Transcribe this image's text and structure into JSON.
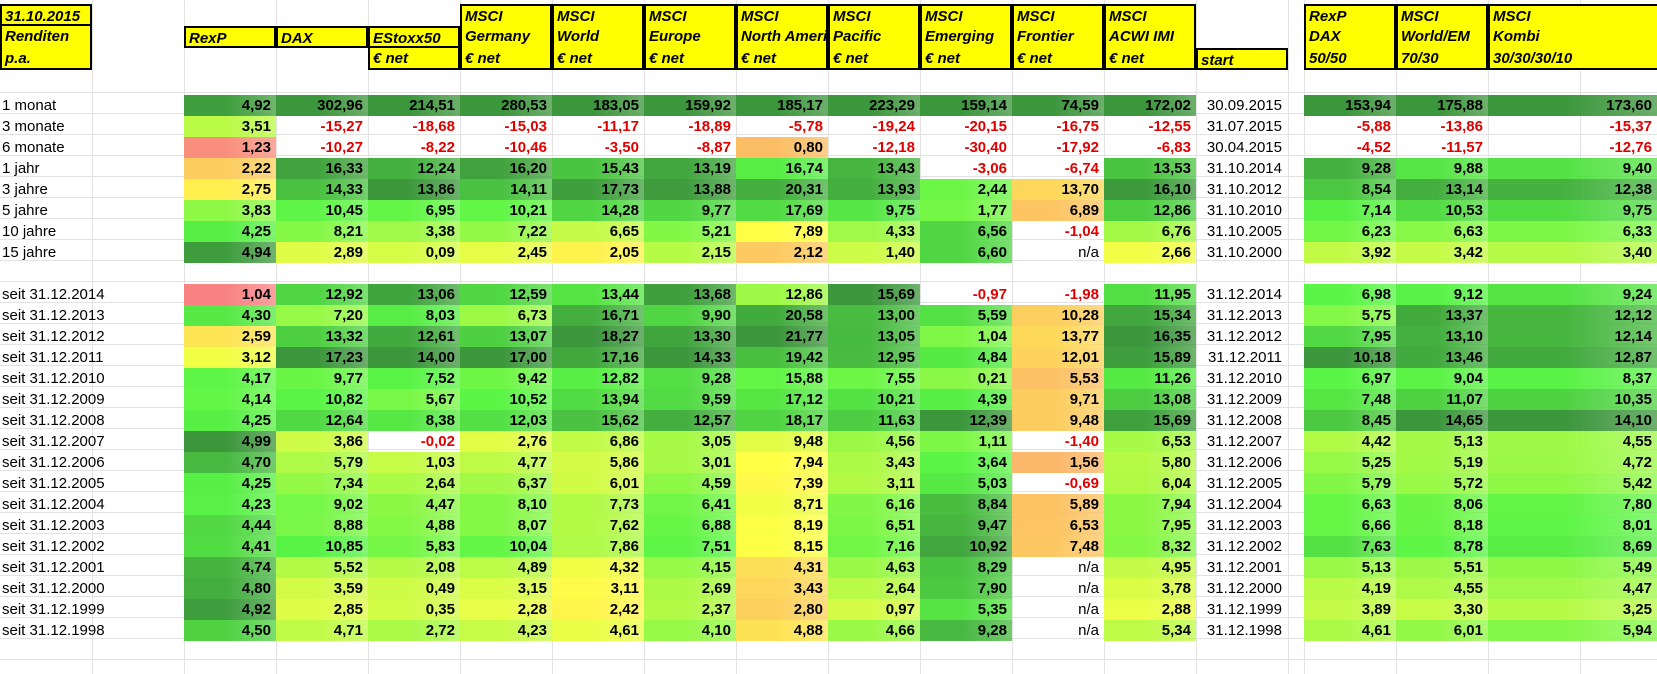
{
  "header": {
    "date": "31.10.2015",
    "renditen": "Renditen",
    "pa": "p.a.",
    "start_label": "start",
    "columns": [
      {
        "l1": "RexP",
        "l2": "",
        "l3": ""
      },
      {
        "l1": "DAX",
        "l2": "",
        "l3": ""
      },
      {
        "l1": "EStoxx50",
        "l2": "€ net",
        "l3": ""
      },
      {
        "l1": "MSCI",
        "l2": "Germany",
        "l3": "€ net"
      },
      {
        "l1": "MSCI",
        "l2": "World",
        "l3": "€ net"
      },
      {
        "l1": "MSCI",
        "l2": "Europe",
        "l3": "€ net"
      },
      {
        "l1": "MSCI",
        "l2": "North America",
        "l3": "€ net"
      },
      {
        "l1": "MSCI",
        "l2": "Pacific",
        "l3": "€ net"
      },
      {
        "l1": "MSCI",
        "l2": "Emerging",
        "l3": "€ net"
      },
      {
        "l1": "MSCI",
        "l2": "Frontier",
        "l3": "€ net"
      },
      {
        "l1": "MSCI",
        "l2": "ACWI IMI",
        "l3": "€ net"
      }
    ],
    "combos": [
      {
        "l1": "RexP",
        "l2": "DAX",
        "l3": "50/50"
      },
      {
        "l1": "MSCI",
        "l2": "World/EM",
        "l3": "70/30"
      },
      {
        "l1": "MSCI",
        "l2": "Kombi",
        "l3": "30/30/30/10"
      }
    ]
  },
  "rows": [
    {
      "label": "1 monat",
      "v": [
        "4,92",
        "302,96",
        "214,51",
        "280,53",
        "183,05",
        "159,92",
        "185,17",
        "223,29",
        "159,14",
        "74,59",
        "172,02"
      ],
      "start": "30.09.2015",
      "c": [
        "153,94",
        "175,88",
        "173,60"
      ]
    },
    {
      "label": "3 monate",
      "v": [
        "3,51",
        "-15,27",
        "-18,68",
        "-15,03",
        "-11,17",
        "-18,89",
        "-5,78",
        "-19,24",
        "-20,15",
        "-16,75",
        "-12,55"
      ],
      "start": "31.07.2015",
      "c": [
        "-5,88",
        "-13,86",
        "-15,37"
      ]
    },
    {
      "label": "6 monate",
      "v": [
        "1,23",
        "-10,27",
        "-8,22",
        "-10,46",
        "-3,50",
        "-8,87",
        "0,80",
        "-12,18",
        "-30,40",
        "-17,92",
        "-6,83"
      ],
      "start": "30.04.2015",
      "c": [
        "-4,52",
        "-11,57",
        "-12,76"
      ]
    },
    {
      "label": "1 jahr",
      "v": [
        "2,22",
        "16,33",
        "12,24",
        "16,20",
        "15,43",
        "13,19",
        "16,74",
        "13,43",
        "-3,06",
        "-6,74",
        "13,53"
      ],
      "start": "31.10.2014",
      "c": [
        "9,28",
        "9,88",
        "9,40"
      ]
    },
    {
      "label": "3 jahre",
      "v": [
        "2,75",
        "14,33",
        "13,86",
        "14,11",
        "17,73",
        "13,88",
        "20,31",
        "13,93",
        "2,44",
        "13,70",
        "16,10"
      ],
      "start": "31.10.2012",
      "c": [
        "8,54",
        "13,14",
        "12,38"
      ]
    },
    {
      "label": "5 jahre",
      "v": [
        "3,83",
        "10,45",
        "6,95",
        "10,21",
        "14,28",
        "9,77",
        "17,69",
        "9,75",
        "1,77",
        "6,89",
        "12,86"
      ],
      "start": "31.10.2010",
      "c": [
        "7,14",
        "10,53",
        "9,75"
      ]
    },
    {
      "label": "10 jahre",
      "v": [
        "4,25",
        "8,21",
        "3,38",
        "7,22",
        "6,65",
        "5,21",
        "7,89",
        "4,33",
        "6,56",
        "-1,04",
        "6,76"
      ],
      "start": "31.10.2005",
      "c": [
        "6,23",
        "6,63",
        "6,33"
      ]
    },
    {
      "label": "15 jahre",
      "v": [
        "4,94",
        "2,89",
        "0,09",
        "2,45",
        "2,05",
        "2,15",
        "2,12",
        "1,40",
        "6,60",
        "n/a",
        "2,66"
      ],
      "start": "31.10.2000",
      "c": [
        "3,92",
        "3,42",
        "3,40"
      ]
    },
    {
      "label": "",
      "v": [],
      "start": "",
      "c": []
    },
    {
      "label": "seit 31.12.2014",
      "v": [
        "1,04",
        "12,92",
        "13,06",
        "12,59",
        "13,44",
        "13,68",
        "12,86",
        "15,69",
        "-0,97",
        "-1,98",
        "11,95"
      ],
      "start": "31.12.2014",
      "c": [
        "6,98",
        "9,12",
        "9,24"
      ]
    },
    {
      "label": "seit 31.12.2013",
      "v": [
        "4,30",
        "7,20",
        "8,03",
        "6,73",
        "16,71",
        "9,90",
        "20,58",
        "13,00",
        "5,59",
        "10,28",
        "15,34"
      ],
      "start": "31.12.2013",
      "c": [
        "5,75",
        "13,37",
        "12,12"
      ]
    },
    {
      "label": "seit 31.12.2012",
      "v": [
        "2,59",
        "13,32",
        "12,61",
        "13,07",
        "18,27",
        "13,30",
        "21,77",
        "13,05",
        "1,04",
        "13,77",
        "16,35"
      ],
      "start": "31.12.2012",
      "c": [
        "7,95",
        "13,10",
        "12,14"
      ]
    },
    {
      "label": "seit 31.12.2011",
      "v": [
        "3,12",
        "17,23",
        "14,00",
        "17,00",
        "17,16",
        "14,33",
        "19,42",
        "12,95",
        "4,84",
        "12,01",
        "15,89"
      ],
      "start": "31.12.2011",
      "c": [
        "10,18",
        "13,46",
        "12,87"
      ]
    },
    {
      "label": "seit 31.12.2010",
      "v": [
        "4,17",
        "9,77",
        "7,52",
        "9,42",
        "12,82",
        "9,28",
        "15,88",
        "7,55",
        "0,21",
        "5,53",
        "11,26"
      ],
      "start": "31.12.2010",
      "c": [
        "6,97",
        "9,04",
        "8,37"
      ]
    },
    {
      "label": "seit 31.12.2009",
      "v": [
        "4,14",
        "10,82",
        "5,67",
        "10,52",
        "13,94",
        "9,59",
        "17,12",
        "10,21",
        "4,39",
        "9,71",
        "13,08"
      ],
      "start": "31.12.2009",
      "c": [
        "7,48",
        "11,07",
        "10,35"
      ]
    },
    {
      "label": "seit 31.12.2008",
      "v": [
        "4,25",
        "12,64",
        "8,38",
        "12,03",
        "15,62",
        "12,57",
        "18,17",
        "11,63",
        "12,39",
        "9,48",
        "15,69"
      ],
      "start": "31.12.2008",
      "c": [
        "8,45",
        "14,65",
        "14,10"
      ]
    },
    {
      "label": "seit 31.12.2007",
      "v": [
        "4,99",
        "3,86",
        "-0,02",
        "2,76",
        "6,86",
        "3,05",
        "9,48",
        "4,56",
        "1,11",
        "-1,40",
        "6,53"
      ],
      "start": "31.12.2007",
      "c": [
        "4,42",
        "5,13",
        "4,55"
      ]
    },
    {
      "label": "seit 31.12.2006",
      "v": [
        "4,70",
        "5,79",
        "1,03",
        "4,77",
        "5,86",
        "3,01",
        "7,94",
        "3,43",
        "3,64",
        "1,56",
        "5,80"
      ],
      "start": "31.12.2006",
      "c": [
        "5,25",
        "5,19",
        "4,72"
      ]
    },
    {
      "label": "seit 31.12.2005",
      "v": [
        "4,25",
        "7,34",
        "2,64",
        "6,37",
        "6,01",
        "4,59",
        "7,39",
        "3,11",
        "5,03",
        "-0,69",
        "6,04"
      ],
      "start": "31.12.2005",
      "c": [
        "5,79",
        "5,72",
        "5,42"
      ]
    },
    {
      "label": "seit 31.12.2004",
      "v": [
        "4,23",
        "9,02",
        "4,47",
        "8,10",
        "7,73",
        "6,41",
        "8,71",
        "6,16",
        "8,84",
        "5,89",
        "7,94"
      ],
      "start": "31.12.2004",
      "c": [
        "6,63",
        "8,06",
        "7,80"
      ]
    },
    {
      "label": "seit 31.12.2003",
      "v": [
        "4,44",
        "8,88",
        "4,88",
        "8,07",
        "7,62",
        "6,88",
        "8,19",
        "6,51",
        "9,47",
        "6,53",
        "7,95"
      ],
      "start": "31.12.2003",
      "c": [
        "6,66",
        "8,18",
        "8,01"
      ]
    },
    {
      "label": "seit 31.12.2002",
      "v": [
        "4,41",
        "10,85",
        "5,83",
        "10,04",
        "7,86",
        "7,51",
        "8,15",
        "7,16",
        "10,92",
        "7,48",
        "8,32"
      ],
      "start": "31.12.2002",
      "c": [
        "7,63",
        "8,78",
        "8,69"
      ]
    },
    {
      "label": "seit 31.12.2001",
      "v": [
        "4,74",
        "5,52",
        "2,08",
        "4,89",
        "4,32",
        "4,15",
        "4,31",
        "4,63",
        "8,29",
        "n/a",
        "4,95"
      ],
      "start": "31.12.2001",
      "c": [
        "5,13",
        "5,51",
        "5,49"
      ]
    },
    {
      "label": "seit 31.12.2000",
      "v": [
        "4,80",
        "3,59",
        "0,49",
        "3,15",
        "3,11",
        "2,69",
        "3,43",
        "2,64",
        "7,90",
        "n/a",
        "3,78"
      ],
      "start": "31.12.2000",
      "c": [
        "4,19",
        "4,55",
        "4,47"
      ]
    },
    {
      "label": "seit 31.12.1999",
      "v": [
        "4,92",
        "2,85",
        "0,35",
        "2,28",
        "2,42",
        "2,37",
        "2,80",
        "0,97",
        "5,35",
        "n/a",
        "2,88"
      ],
      "start": "31.12.1999",
      "c": [
        "3,89",
        "3,30",
        "3,25"
      ]
    },
    {
      "label": "seit 31.12.1998",
      "v": [
        "4,50",
        "4,71",
        "2,72",
        "4,23",
        "4,61",
        "4,10",
        "4,88",
        "4,66",
        "9,28",
        "n/a",
        "5,34"
      ],
      "start": "31.12.1998",
      "c": [
        "4,61",
        "6,01",
        "5,94"
      ]
    }
  ]
}
